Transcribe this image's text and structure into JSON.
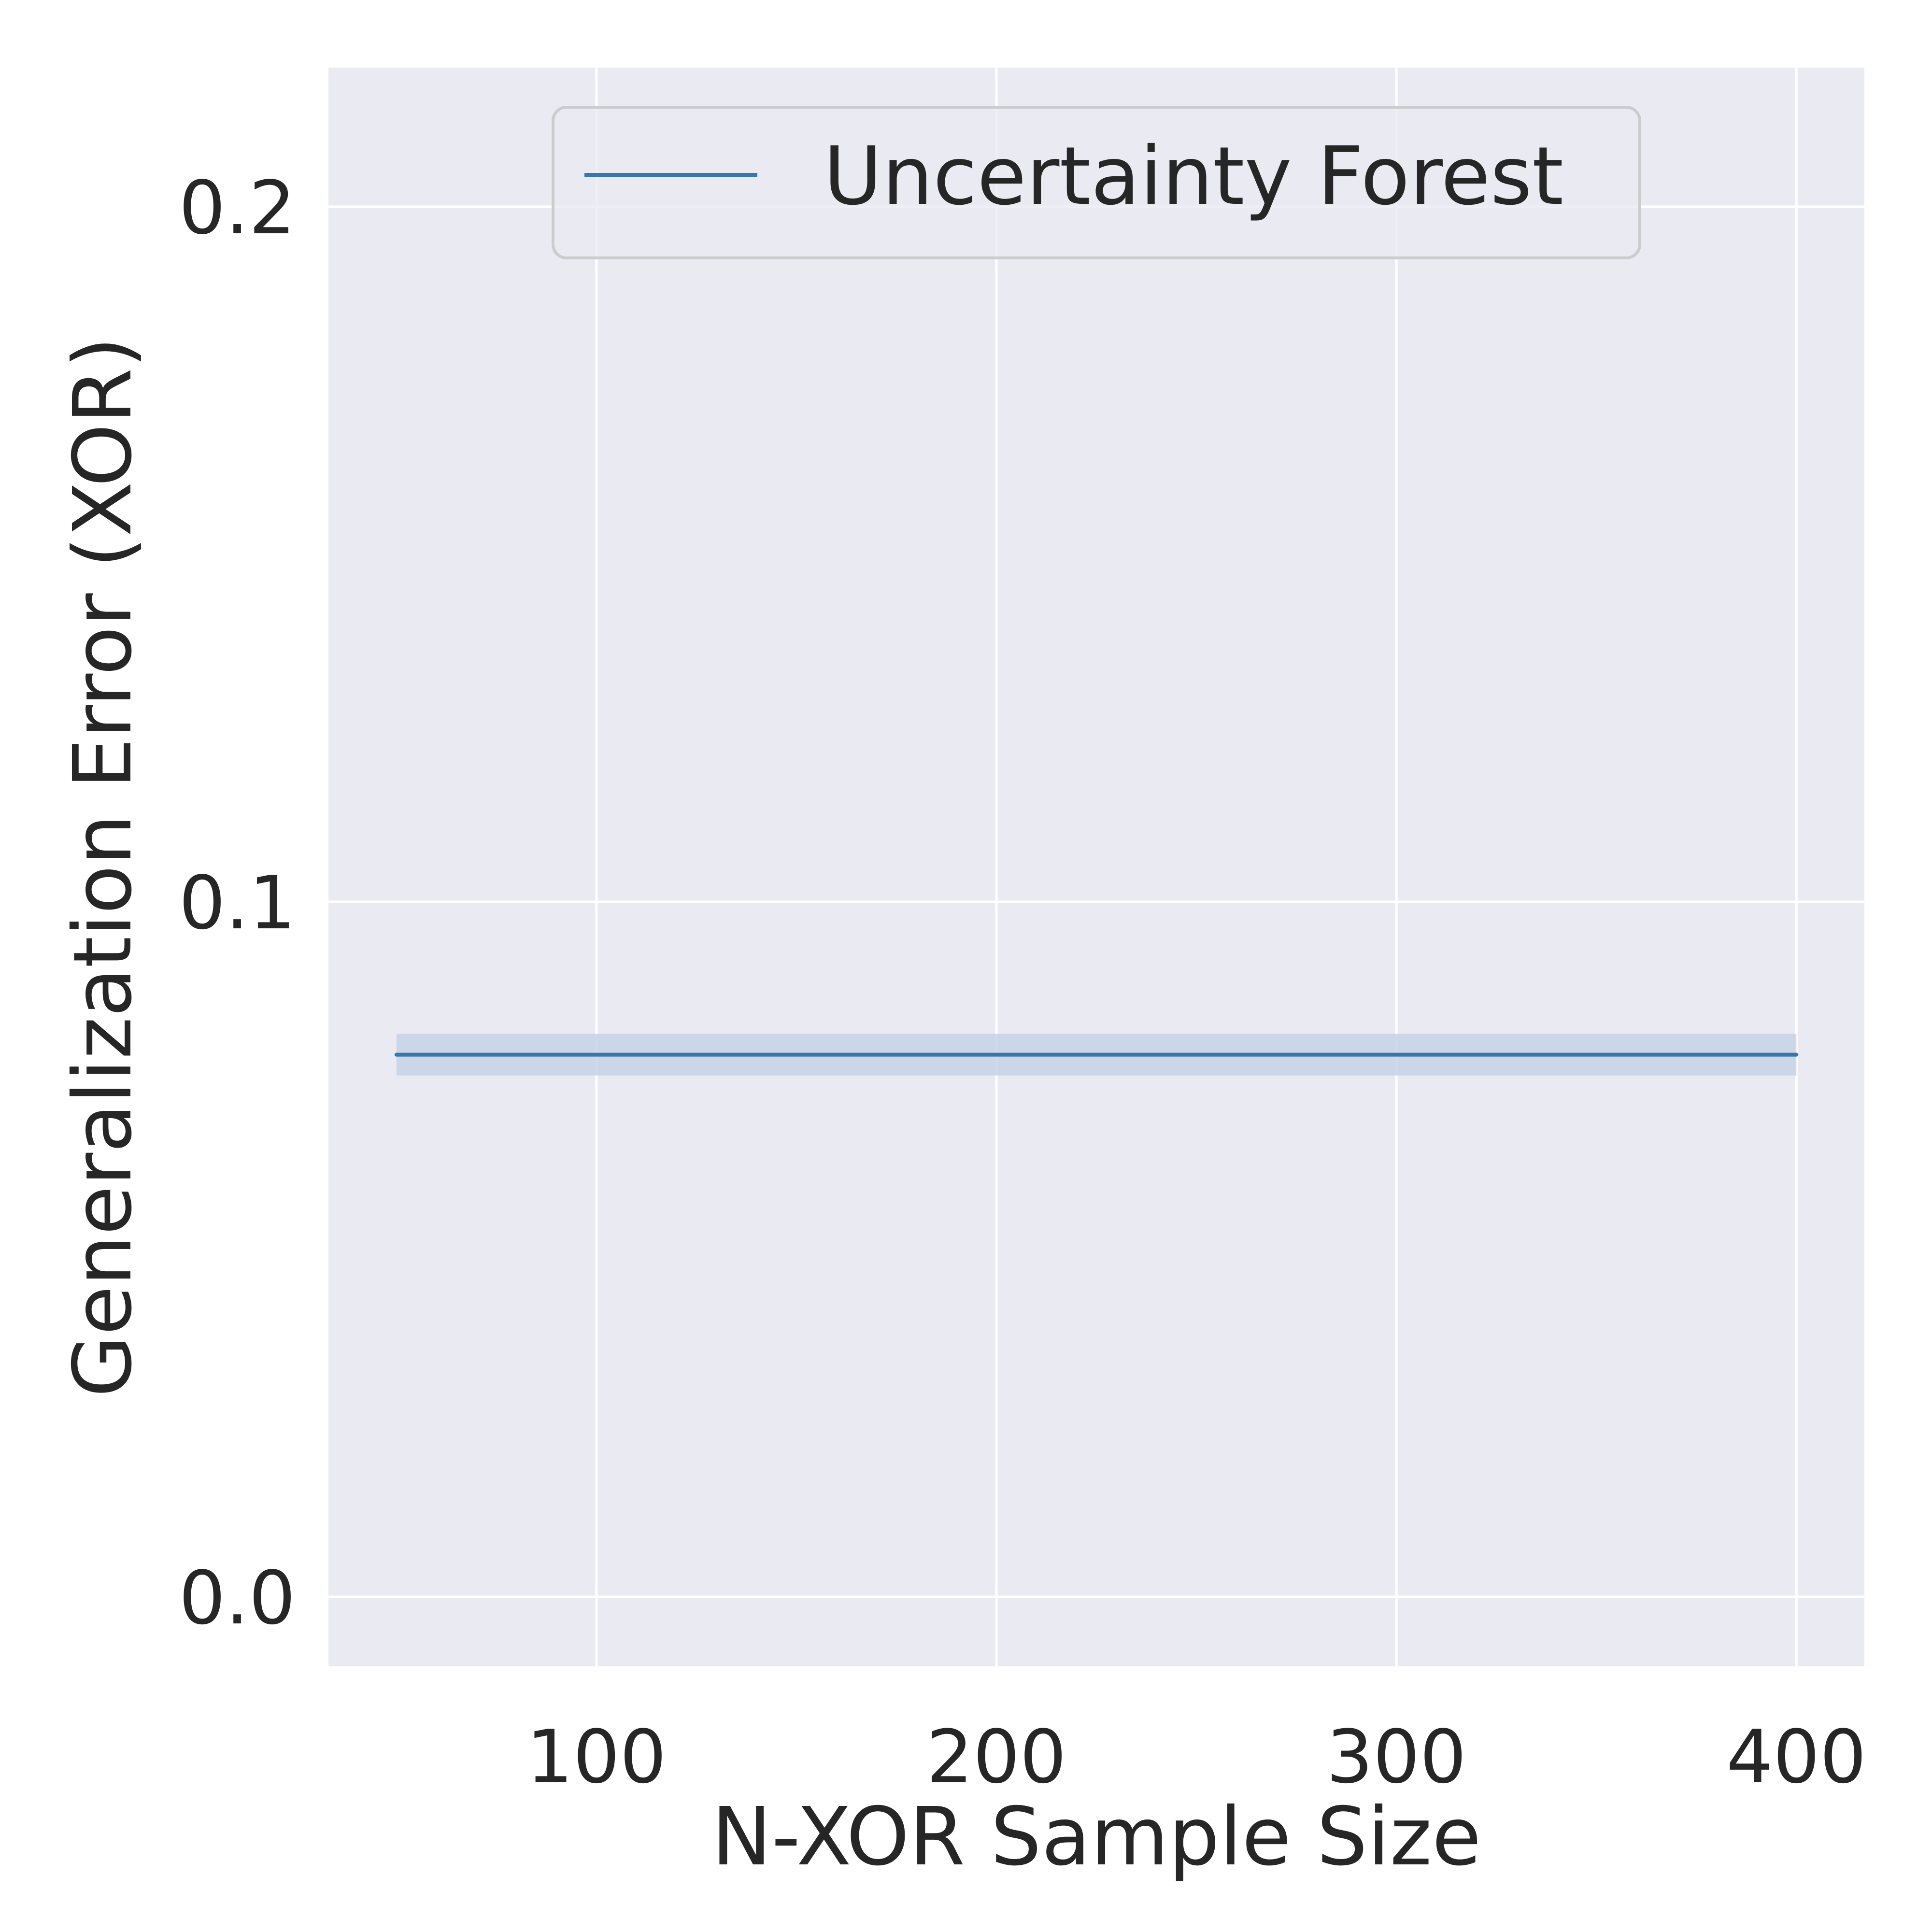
{
  "chart_data": {
    "type": "line",
    "xlabel": "N-XOR Sample Size",
    "ylabel": "Generalization Error (XOR)",
    "xlim": [
      33,
      417
    ],
    "ylim": [
      -0.01,
      0.22
    ],
    "xticks": [
      100,
      200,
      300,
      400
    ],
    "xtick_labels": [
      "100",
      "200",
      "300",
      "400"
    ],
    "yticks": [
      0.0,
      0.1,
      0.2
    ],
    "ytick_labels": [
      "0.0",
      "0.1",
      "0.2"
    ],
    "grid": true,
    "legend": {
      "position": "top-center"
    },
    "series": [
      {
        "name": "Uncertainty Forest",
        "color": "#3a76ae",
        "x": [
          50,
          400
        ],
        "y": [
          0.078,
          0.078
        ],
        "band_lower": [
          0.075,
          0.075
        ],
        "band_upper": [
          0.081,
          0.081
        ]
      }
    ]
  },
  "colors": {
    "plot_background": "#eaeaf2",
    "grid": "#ffffff",
    "text": "#262626",
    "band": "#c5d3e8"
  }
}
